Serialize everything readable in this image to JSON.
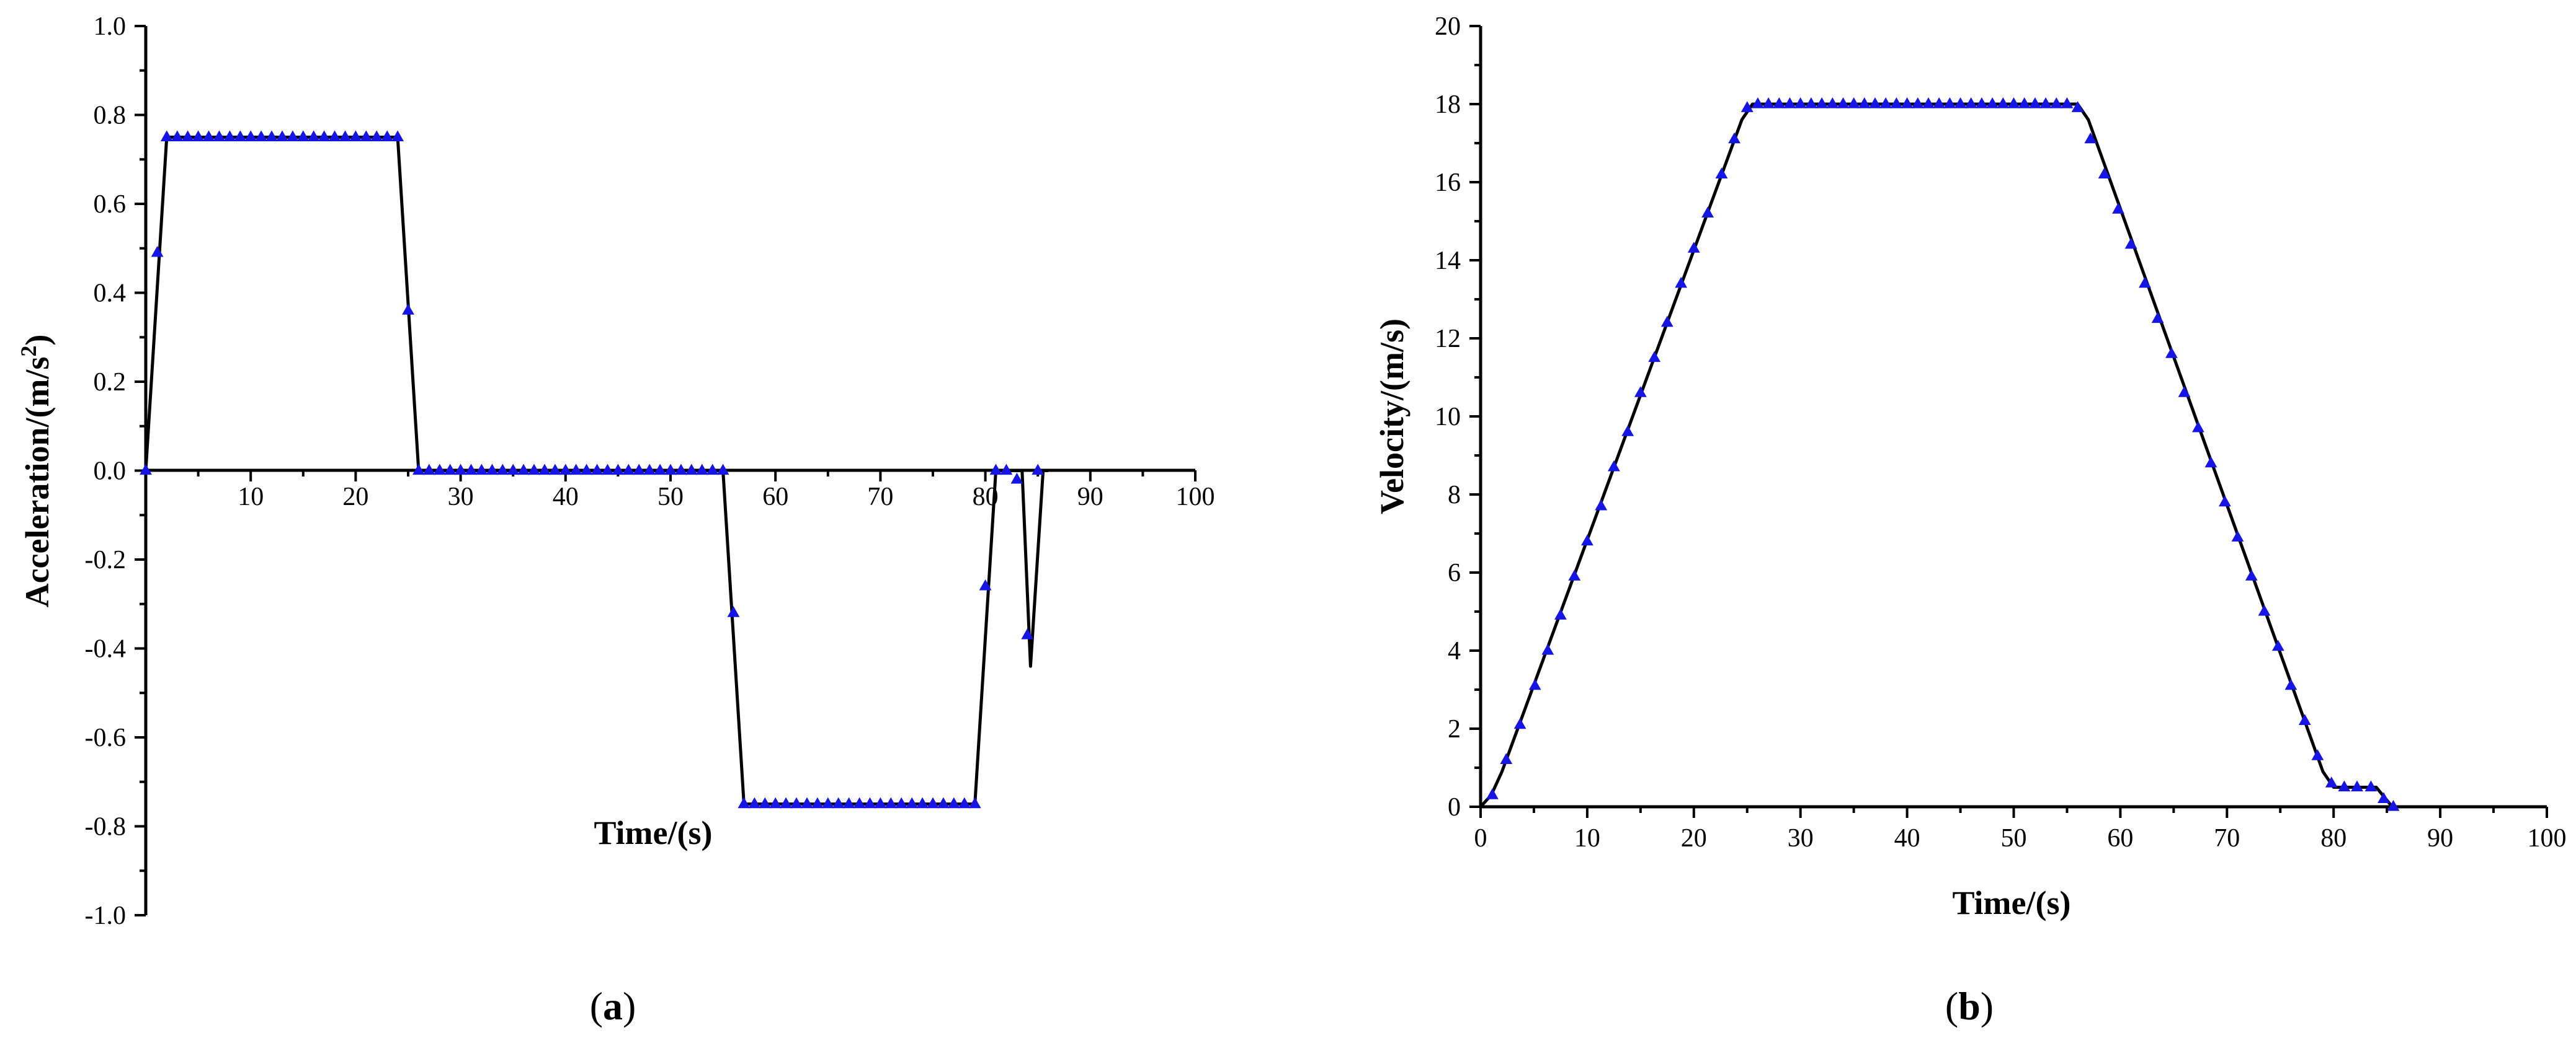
{
  "chart_data": [
    {
      "type": "line",
      "xlabel": "Time/(s)",
      "ylabel": "Acceleration/(m/s",
      "ylabel_sup": "2",
      "ylabel_end": ")",
      "xlim": [
        0,
        100
      ],
      "ylim": [
        -1.0,
        1.0
      ],
      "x_ticks": [
        10,
        20,
        30,
        40,
        50,
        60,
        70,
        80,
        90,
        100
      ],
      "x_tick_labels": [
        "10",
        "20",
        "30",
        "40",
        "50",
        "60",
        "70",
        "80",
        "90",
        "100"
      ],
      "y_ticks": [
        -1.0,
        -0.8,
        -0.6,
        -0.4,
        -0.2,
        0.0,
        0.2,
        0.4,
        0.6,
        0.8,
        1.0
      ],
      "y_tick_labels": [
        "-1.0",
        "-0.8",
        "-0.6",
        "-0.4",
        "-0.2",
        "0.0",
        "0.2",
        "0.4",
        "0.6",
        "0.8",
        "1.0"
      ],
      "line_color": "#000000",
      "marker_color": "#1515e6",
      "marker": "triangle",
      "series": [
        {
          "line": [
            [
              0,
              0
            ],
            [
              2,
              0.75
            ],
            [
              24,
              0.75
            ],
            [
              26,
              0
            ],
            [
              55,
              0
            ],
            [
              57,
              -0.75
            ],
            [
              79,
              -0.75
            ],
            [
              81,
              0
            ],
            [
              82.5,
              0
            ],
            [
              83.5,
              0
            ],
            [
              84.3,
              -0.44
            ],
            [
              85.5,
              0
            ],
            [
              86,
              0
            ]
          ],
          "markers": [
            [
              0,
              0
            ],
            [
              1.1,
              0.49
            ],
            [
              2,
              0.75
            ],
            [
              3,
              0.75
            ],
            [
              4,
              0.75
            ],
            [
              5,
              0.75
            ],
            [
              6,
              0.75
            ],
            [
              7,
              0.75
            ],
            [
              8,
              0.75
            ],
            [
              9,
              0.75
            ],
            [
              10,
              0.75
            ],
            [
              11,
              0.75
            ],
            [
              12,
              0.75
            ],
            [
              13,
              0.75
            ],
            [
              14,
              0.75
            ],
            [
              15,
              0.75
            ],
            [
              16,
              0.75
            ],
            [
              17,
              0.75
            ],
            [
              18,
              0.75
            ],
            [
              19,
              0.75
            ],
            [
              20,
              0.75
            ],
            [
              21,
              0.75
            ],
            [
              22,
              0.75
            ],
            [
              23,
              0.75
            ],
            [
              24,
              0.75
            ],
            [
              25,
              0.36
            ],
            [
              26,
              0
            ],
            [
              27,
              0
            ],
            [
              28,
              0
            ],
            [
              29,
              0
            ],
            [
              30,
              0
            ],
            [
              31,
              0
            ],
            [
              32,
              0
            ],
            [
              33,
              0
            ],
            [
              34,
              0
            ],
            [
              35,
              0
            ],
            [
              36,
              0
            ],
            [
              37,
              0
            ],
            [
              38,
              0
            ],
            [
              39,
              0
            ],
            [
              40,
              0
            ],
            [
              41,
              0
            ],
            [
              42,
              0
            ],
            [
              43,
              0
            ],
            [
              44,
              0
            ],
            [
              45,
              0
            ],
            [
              46,
              0
            ],
            [
              47,
              0
            ],
            [
              48,
              0
            ],
            [
              49,
              0
            ],
            [
              50,
              0
            ],
            [
              51,
              0
            ],
            [
              52,
              0
            ],
            [
              53,
              0
            ],
            [
              54,
              0
            ],
            [
              55,
              0
            ],
            [
              56,
              -0.32
            ],
            [
              57,
              -0.75
            ],
            [
              58,
              -0.75
            ],
            [
              59,
              -0.75
            ],
            [
              60,
              -0.75
            ],
            [
              61,
              -0.75
            ],
            [
              62,
              -0.75
            ],
            [
              63,
              -0.75
            ],
            [
              64,
              -0.75
            ],
            [
              65,
              -0.75
            ],
            [
              66,
              -0.75
            ],
            [
              67,
              -0.75
            ],
            [
              68,
              -0.75
            ],
            [
              69,
              -0.75
            ],
            [
              70,
              -0.75
            ],
            [
              71,
              -0.75
            ],
            [
              72,
              -0.75
            ],
            [
              73,
              -0.75
            ],
            [
              74,
              -0.75
            ],
            [
              75,
              -0.75
            ],
            [
              76,
              -0.75
            ],
            [
              77,
              -0.75
            ],
            [
              78,
              -0.75
            ],
            [
              79,
              -0.75
            ],
            [
              80,
              -0.26
            ],
            [
              81,
              0
            ],
            [
              82,
              0
            ],
            [
              83,
              -0.02
            ],
            [
              84,
              -0.37
            ],
            [
              85,
              0
            ]
          ]
        }
      ],
      "panel_label": "(a)"
    },
    {
      "type": "line",
      "xlabel": "Time/(s)",
      "ylabel": "Velocity/(m/s)",
      "xlim": [
        0,
        100
      ],
      "ylim": [
        0,
        20
      ],
      "x_ticks": [
        0,
        10,
        20,
        30,
        40,
        50,
        60,
        70,
        80,
        90,
        100
      ],
      "x_tick_labels": [
        "0",
        "10",
        "20",
        "30",
        "40",
        "50",
        "60",
        "70",
        "80",
        "90",
        "100"
      ],
      "y_ticks": [
        0,
        2,
        4,
        6,
        8,
        10,
        12,
        14,
        16,
        18,
        20
      ],
      "y_tick_labels": [
        "0",
        "2",
        "4",
        "6",
        "8",
        "10",
        "12",
        "14",
        "16",
        "18",
        "20"
      ],
      "line_color": "#000000",
      "marker_color": "#1515e6",
      "marker": "triangle",
      "series": [
        {
          "line": [
            [
              0,
              0
            ],
            [
              1,
              0.3
            ],
            [
              2,
              0.9
            ],
            [
              24.5,
              17.6
            ],
            [
              25.5,
              18
            ],
            [
              56,
              18
            ],
            [
              57,
              17.6
            ],
            [
              79,
              0.9
            ],
            [
              80,
              0.5
            ],
            [
              84,
              0.5
            ],
            [
              85.5,
              0
            ],
            [
              86,
              0
            ]
          ],
          "markers": [
            [
              1.1,
              0.3
            ],
            [
              2.4,
              1.2
            ],
            [
              3.7,
              2.1
            ],
            [
              5.1,
              3.1
            ],
            [
              6.3,
              4.0
            ],
            [
              7.5,
              4.9
            ],
            [
              8.8,
              5.9
            ],
            [
              10.0,
              6.8
            ],
            [
              11.3,
              7.7
            ],
            [
              12.5,
              8.7
            ],
            [
              13.8,
              9.6
            ],
            [
              15.0,
              10.6
            ],
            [
              16.3,
              11.5
            ],
            [
              17.5,
              12.4
            ],
            [
              18.8,
              13.4
            ],
            [
              20.0,
              14.3
            ],
            [
              21.3,
              15.2
            ],
            [
              22.6,
              16.2
            ],
            [
              23.8,
              17.1
            ],
            [
              25.0,
              17.9
            ],
            [
              26,
              18
            ],
            [
              27,
              18
            ],
            [
              28,
              18
            ],
            [
              29,
              18
            ],
            [
              30,
              18
            ],
            [
              31,
              18
            ],
            [
              32,
              18
            ],
            [
              33,
              18
            ],
            [
              34,
              18
            ],
            [
              35,
              18
            ],
            [
              36,
              18
            ],
            [
              37,
              18
            ],
            [
              38,
              18
            ],
            [
              39,
              18
            ],
            [
              40,
              18
            ],
            [
              41,
              18
            ],
            [
              42,
              18
            ],
            [
              43,
              18
            ],
            [
              44,
              18
            ],
            [
              45,
              18
            ],
            [
              46,
              18
            ],
            [
              47,
              18
            ],
            [
              48,
              18
            ],
            [
              49,
              18
            ],
            [
              50,
              18
            ],
            [
              51,
              18
            ],
            [
              52,
              18
            ],
            [
              53,
              18
            ],
            [
              54,
              18
            ],
            [
              55,
              18
            ],
            [
              56,
              17.9
            ],
            [
              57.2,
              17.1
            ],
            [
              58.5,
              16.2
            ],
            [
              59.8,
              15.3
            ],
            [
              61.0,
              14.4
            ],
            [
              62.3,
              13.4
            ],
            [
              63.5,
              12.5
            ],
            [
              64.8,
              11.6
            ],
            [
              66.0,
              10.6
            ],
            [
              67.3,
              9.7
            ],
            [
              68.5,
              8.8
            ],
            [
              69.8,
              7.8
            ],
            [
              71.0,
              6.9
            ],
            [
              72.3,
              5.9
            ],
            [
              73.5,
              5.0
            ],
            [
              74.8,
              4.1
            ],
            [
              76.0,
              3.1
            ],
            [
              77.3,
              2.2
            ],
            [
              78.5,
              1.3
            ],
            [
              79.8,
              0.6
            ],
            [
              81.0,
              0.5
            ],
            [
              82.2,
              0.5
            ],
            [
              83.5,
              0.5
            ],
            [
              84.7,
              0.2
            ],
            [
              85.6,
              0.0
            ]
          ]
        }
      ],
      "panel_label": "(b)"
    }
  ],
  "panel_labels": {
    "a_open": "(",
    "a_letter": "a",
    "a_close": ")",
    "b_open": "(",
    "b_letter": "b",
    "b_close": ")"
  }
}
